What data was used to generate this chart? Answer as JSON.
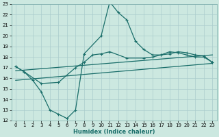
{
  "bg_color": "#cce8e0",
  "grid_color": "#aacccc",
  "line_color": "#1a6e6a",
  "xlim": [
    -0.5,
    23.5
  ],
  "ylim": [
    12,
    23
  ],
  "xlabel": "Humidex (Indice chaleur)",
  "xticks": [
    0,
    1,
    2,
    3,
    4,
    5,
    6,
    7,
    8,
    9,
    10,
    11,
    12,
    13,
    14,
    15,
    16,
    17,
    18,
    19,
    20,
    21,
    22,
    23
  ],
  "yticks": [
    12,
    13,
    14,
    15,
    16,
    17,
    18,
    19,
    20,
    21,
    22,
    23
  ],
  "series1_x": [
    0,
    1,
    2,
    3,
    4,
    5,
    6,
    7,
    8,
    10,
    11,
    12,
    13,
    14,
    15,
    16,
    17,
    18,
    19,
    20,
    21,
    22,
    23
  ],
  "series1_y": [
    17.1,
    16.6,
    15.8,
    14.7,
    13.0,
    12.6,
    12.2,
    13.0,
    18.3,
    20.0,
    23.2,
    22.2,
    21.5,
    19.5,
    18.7,
    18.2,
    18.2,
    18.5,
    18.4,
    18.2,
    18.0,
    18.0,
    17.5
  ],
  "series2_x": [
    0,
    1,
    3,
    5,
    7,
    8,
    9,
    10,
    11,
    13,
    15,
    16,
    17,
    18,
    19,
    20,
    21,
    22,
    23
  ],
  "series2_y": [
    17.1,
    16.6,
    15.5,
    15.6,
    17.0,
    17.5,
    18.2,
    18.3,
    18.5,
    17.9,
    17.9,
    18.0,
    18.2,
    18.3,
    18.5,
    18.4,
    18.2,
    18.1,
    17.5
  ],
  "series3_x": [
    0,
    23
  ],
  "series3_y": [
    16.7,
    18.2
  ],
  "series4_x": [
    0,
    23
  ],
  "series4_y": [
    15.8,
    17.4
  ]
}
